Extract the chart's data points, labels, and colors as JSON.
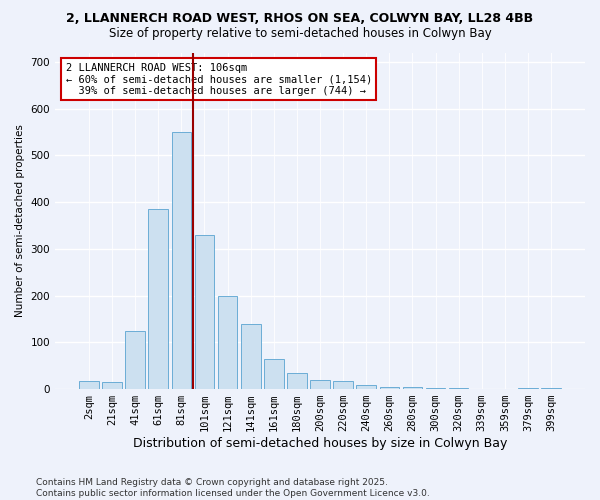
{
  "title_line1": "2, LLANNERCH ROAD WEST, RHOS ON SEA, COLWYN BAY, LL28 4BB",
  "title_line2": "Size of property relative to semi-detached houses in Colwyn Bay",
  "xlabel": "Distribution of semi-detached houses by size in Colwyn Bay",
  "ylabel": "Number of semi-detached properties",
  "footnote1": "Contains HM Land Registry data © Crown copyright and database right 2025.",
  "footnote2": "Contains public sector information licensed under the Open Government Licence v3.0.",
  "categories": [
    "2sqm",
    "21sqm",
    "41sqm",
    "61sqm",
    "81sqm",
    "101sqm",
    "121sqm",
    "141sqm",
    "161sqm",
    "180sqm",
    "200sqm",
    "220sqm",
    "240sqm",
    "260sqm",
    "280sqm",
    "300sqm",
    "320sqm",
    "339sqm",
    "359sqm",
    "379sqm",
    "399sqm"
  ],
  "values": [
    18,
    15,
    125,
    385,
    550,
    330,
    200,
    140,
    65,
    35,
    20,
    18,
    8,
    5,
    5,
    3,
    2,
    0,
    0,
    2,
    2
  ],
  "bar_color": "#cce0f0",
  "bar_edge_color": "#6badd6",
  "vline_x_pos": 4.5,
  "vline_color": "#990000",
  "annotation_line1": "2 LLANNERCH ROAD WEST: 106sqm",
  "annotation_line2": "← 60% of semi-detached houses are smaller (1,154)",
  "annotation_line3": "  39% of semi-detached houses are larger (744) →",
  "annotation_box_color": "#ffffff",
  "annotation_box_edge": "#cc0000",
  "background_color": "#eef2fb",
  "ylim": [
    0,
    720
  ],
  "yticks": [
    0,
    100,
    200,
    300,
    400,
    500,
    600,
    700
  ],
  "title1_fontsize": 9,
  "title2_fontsize": 8.5,
  "xlabel_fontsize": 9,
  "ylabel_fontsize": 7.5,
  "tick_fontsize": 7.5,
  "footnote_fontsize": 6.5,
  "annotation_fontsize": 7.5
}
